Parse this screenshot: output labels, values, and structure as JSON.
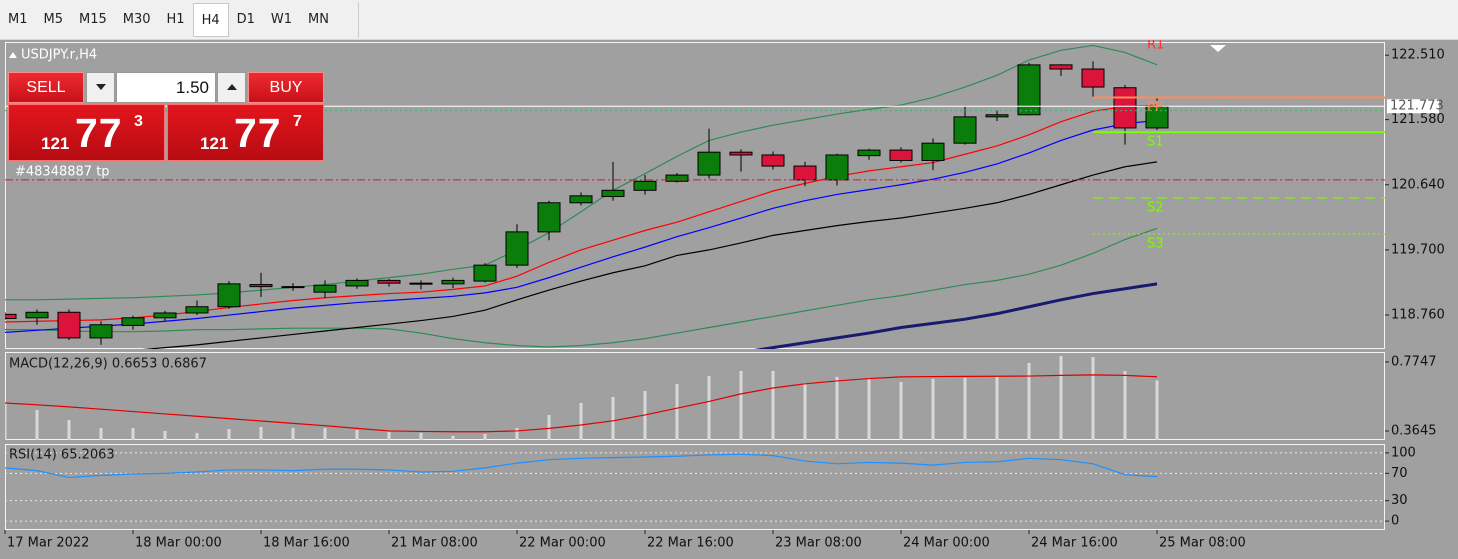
{
  "toolbar": {
    "timeframes": [
      "M1",
      "M5",
      "M15",
      "M30",
      "H1",
      "H4",
      "D1",
      "W1",
      "MN"
    ],
    "active": "H4"
  },
  "trade_panel": {
    "sell_label": "SELL",
    "buy_label": "BUY",
    "volume": "1.50",
    "sell_price": {
      "big": "121",
      "pips": "77",
      "point": "3"
    },
    "buy_price": {
      "big": "121",
      "pips": "77",
      "point": "7"
    }
  },
  "chart_data": [
    {
      "type": "candlestick",
      "title": "USDJPY.r,H4",
      "categories": [
        "17 Mar 2022",
        null,
        null,
        null,
        "18 Mar 00:00",
        null,
        null,
        null,
        "18 Mar 16:00",
        null,
        null,
        null,
        "21 Mar 08:00",
        null,
        null,
        null,
        "22 Mar 00:00",
        null,
        null,
        null,
        "22 Mar 16:00",
        null,
        null,
        null,
        "23 Mar 08:00",
        null,
        null,
        null,
        "24 Mar 00:00",
        null,
        null,
        null,
        "24 Mar 16:00",
        null,
        null,
        null,
        "25 Mar 08:00"
      ],
      "open": [
        118.77,
        118.72,
        118.8,
        118.43,
        118.61,
        118.72,
        118.79,
        118.88,
        119.2,
        119.17,
        119.09,
        119.18,
        119.26,
        119.22,
        119.21,
        119.25,
        119.48,
        119.96,
        120.38,
        120.47,
        120.56,
        120.69,
        120.78,
        121.11,
        121.07,
        120.91,
        120.71,
        121.06,
        121.14,
        120.99,
        121.24,
        121.62,
        121.65,
        122.37,
        122.31,
        122.04,
        121.46
      ],
      "high": [
        118.8,
        118.84,
        118.84,
        118.67,
        118.75,
        118.82,
        118.97,
        119.25,
        119.37,
        119.22,
        119.26,
        119.29,
        119.28,
        119.26,
        119.3,
        119.51,
        120.07,
        120.41,
        120.53,
        120.97,
        120.78,
        120.81,
        121.45,
        121.15,
        121.12,
        120.97,
        121.09,
        121.16,
        121.18,
        121.31,
        121.77,
        121.71,
        122.4,
        122.38,
        122.42,
        122.08,
        121.91
      ],
      "low": [
        118.69,
        118.62,
        118.4,
        118.33,
        118.55,
        118.68,
        118.76,
        118.85,
        119.02,
        119.11,
        119.01,
        119.14,
        119.17,
        119.13,
        119.15,
        119.23,
        119.44,
        119.84,
        120.34,
        120.41,
        120.5,
        120.67,
        120.73,
        120.83,
        120.86,
        120.62,
        120.63,
        121.0,
        120.96,
        120.85,
        121.22,
        121.56,
        121.64,
        122.21,
        121.91,
        121.22,
        121.43
      ],
      "close": [
        118.71,
        118.8,
        118.43,
        118.62,
        118.72,
        118.79,
        118.88,
        119.21,
        119.17,
        119.16,
        119.19,
        119.26,
        119.22,
        119.21,
        119.26,
        119.48,
        119.96,
        120.38,
        120.48,
        120.56,
        120.69,
        120.78,
        121.11,
        121.07,
        120.91,
        120.71,
        121.07,
        121.14,
        120.99,
        121.24,
        121.62,
        121.65,
        122.37,
        122.31,
        122.05,
        121.46,
        121.77
      ],
      "up_color": "#0a7d0a",
      "down_color": "#dc143c",
      "series": [
        {
          "color": "#2e8b57",
          "values": [
            118.98,
            118.98,
            118.99,
            119.0,
            119.01,
            119.03,
            119.05,
            119.08,
            119.12,
            119.16,
            119.2,
            119.25,
            119.3,
            119.35,
            119.42,
            119.48,
            119.7,
            119.95,
            120.25,
            120.56,
            120.8,
            121.05,
            121.28,
            121.4,
            121.5,
            121.58,
            121.66,
            121.73,
            121.79,
            121.9,
            122.05,
            122.22,
            122.44,
            122.58,
            122.65,
            122.55,
            122.37
          ]
        },
        {
          "color": "#2e8b57",
          "values": [
            118.55,
            118.55,
            118.53,
            118.52,
            118.52,
            118.53,
            118.55,
            118.55,
            118.56,
            118.57,
            118.57,
            118.57,
            118.56,
            118.5,
            118.42,
            118.36,
            118.32,
            118.3,
            118.32,
            118.36,
            118.42,
            118.5,
            118.58,
            118.66,
            118.74,
            118.82,
            118.9,
            118.98,
            119.04,
            119.12,
            119.2,
            119.26,
            119.35,
            119.48,
            119.65,
            119.85,
            120.01
          ]
        },
        {
          "color": "#000000",
          "values": [
            118.15,
            118.17,
            118.19,
            118.22,
            118.25,
            118.29,
            118.33,
            118.38,
            118.43,
            118.48,
            118.53,
            118.58,
            118.63,
            118.68,
            118.74,
            118.83,
            118.98,
            119.12,
            119.25,
            119.37,
            119.47,
            119.62,
            119.7,
            119.8,
            119.91,
            119.98,
            120.05,
            120.11,
            120.16,
            120.23,
            120.3,
            120.38,
            120.5,
            120.64,
            120.78,
            120.9,
            120.97
          ]
        },
        {
          "color": "#0000ff",
          "values": [
            118.51,
            118.54,
            118.57,
            118.6,
            118.63,
            118.67,
            118.71,
            118.76,
            118.81,
            118.86,
            118.9,
            118.94,
            118.97,
            119.0,
            119.03,
            119.08,
            119.16,
            119.3,
            119.45,
            119.6,
            119.74,
            119.89,
            120.02,
            120.16,
            120.3,
            120.41,
            120.5,
            120.57,
            120.64,
            120.72,
            120.82,
            120.94,
            121.1,
            121.28,
            121.43,
            121.52,
            121.57
          ]
        },
        {
          "color": "#ff0000",
          "values": [
            118.66,
            118.67,
            118.68,
            118.69,
            118.72,
            118.76,
            118.81,
            118.87,
            118.92,
            118.97,
            119.01,
            119.04,
            119.07,
            119.09,
            119.13,
            119.18,
            119.32,
            119.52,
            119.7,
            119.84,
            119.98,
            120.1,
            120.25,
            120.4,
            120.55,
            120.66,
            120.76,
            120.84,
            120.9,
            120.96,
            121.08,
            121.2,
            121.36,
            121.55,
            121.7,
            121.77,
            121.79
          ]
        },
        {
          "color": "#191970",
          "style": "thick",
          "values": [
            null,
            null,
            null,
            null,
            null,
            null,
            null,
            null,
            null,
            null,
            null,
            null,
            null,
            null,
            null,
            null,
            null,
            null,
            null,
            null,
            null,
            null,
            null,
            118.22,
            118.29,
            118.36,
            118.43,
            118.5,
            118.58,
            118.64,
            118.7,
            118.78,
            118.88,
            118.98,
            119.07,
            119.14,
            119.21
          ]
        }
      ],
      "levels": [
        {
          "label": "R1",
          "value": 122.8,
          "color": "#ff3030",
          "style": "solid"
        },
        {
          "label": "PP",
          "value": 121.9,
          "color": "#ff8c5a",
          "style": "solid"
        },
        {
          "label": "S1",
          "value": 121.4,
          "color": "#7cfc00",
          "style": "solid"
        },
        {
          "label": "S2",
          "value": 120.45,
          "color": "#7cfc00",
          "style": "dashed"
        },
        {
          "label": "S3",
          "value": 119.93,
          "color": "#7cfc00",
          "style": "dotted"
        }
      ],
      "price_lines": [
        {
          "value": 121.71,
          "color": "#3cb371",
          "style": "dotted"
        },
        {
          "value": 121.773,
          "color": "#ffffff",
          "style": "solid"
        }
      ],
      "current_price": 121.773,
      "order": {
        "label": "#48348887 tp",
        "value": 120.71,
        "color": "#dc143c"
      },
      "ylim": [
        118.27,
        122.7
      ],
      "yticks": [
        {
          "value": 118.76,
          "label": "118.760"
        },
        {
          "value": 119.7,
          "label": "119.700"
        },
        {
          "value": 120.64,
          "label": "120.640"
        },
        {
          "value": 121.58,
          "label": "121.580"
        },
        {
          "value": 122.51,
          "label": "122.510"
        }
      ],
      "grid": false
    },
    {
      "type": "bar",
      "title": "MACD(12,26,9) 0.6653 0.6867",
      "values": [
        0.531,
        0.489,
        0.43,
        0.382,
        0.382,
        0.365,
        0.353,
        0.376,
        0.388,
        0.382,
        0.382,
        0.37,
        0.358,
        0.353,
        0.335,
        0.347,
        0.382,
        0.46,
        0.531,
        0.567,
        0.602,
        0.644,
        0.691,
        0.721,
        0.721,
        0.65,
        0.686,
        0.68,
        0.656,
        0.674,
        0.68,
        0.686,
        0.769,
        0.81,
        0.804,
        0.721,
        0.6653
      ],
      "color": "#d9d9d9",
      "series": [
        {
          "color": "#e00000",
          "values": [
            0.531,
            0.52,
            0.508,
            0.494,
            0.48,
            0.466,
            0.452,
            0.438,
            0.424,
            0.41,
            0.396,
            0.38,
            0.365,
            0.362,
            0.36,
            0.36,
            0.365,
            0.38,
            0.4,
            0.425,
            0.46,
            0.5,
            0.54,
            0.585,
            0.62,
            0.645,
            0.662,
            0.676,
            0.686,
            0.688,
            0.689,
            0.69,
            0.691,
            0.695,
            0.698,
            0.695,
            0.6867
          ]
        }
      ],
      "ylim": [
        0.311,
        0.834
      ],
      "yticks": [
        0.3645,
        0.7747
      ],
      "grid": false
    },
    {
      "type": "line",
      "title": "RSI(14) 65.2063",
      "series": [
        {
          "color": "#1e90ff",
          "values": [
            78,
            74,
            64,
            67,
            69,
            70,
            72,
            75,
            75,
            74,
            76,
            76,
            75,
            72,
            73,
            78,
            85,
            90,
            92,
            93,
            94,
            95,
            97,
            98,
            96,
            88,
            84,
            86,
            85,
            82,
            86,
            87,
            92,
            90,
            84,
            68,
            65.2063
          ]
        }
      ],
      "ylim": [
        -13,
        113
      ],
      "yticks": [
        0,
        30,
        70,
        100
      ],
      "grid": true
    }
  ]
}
